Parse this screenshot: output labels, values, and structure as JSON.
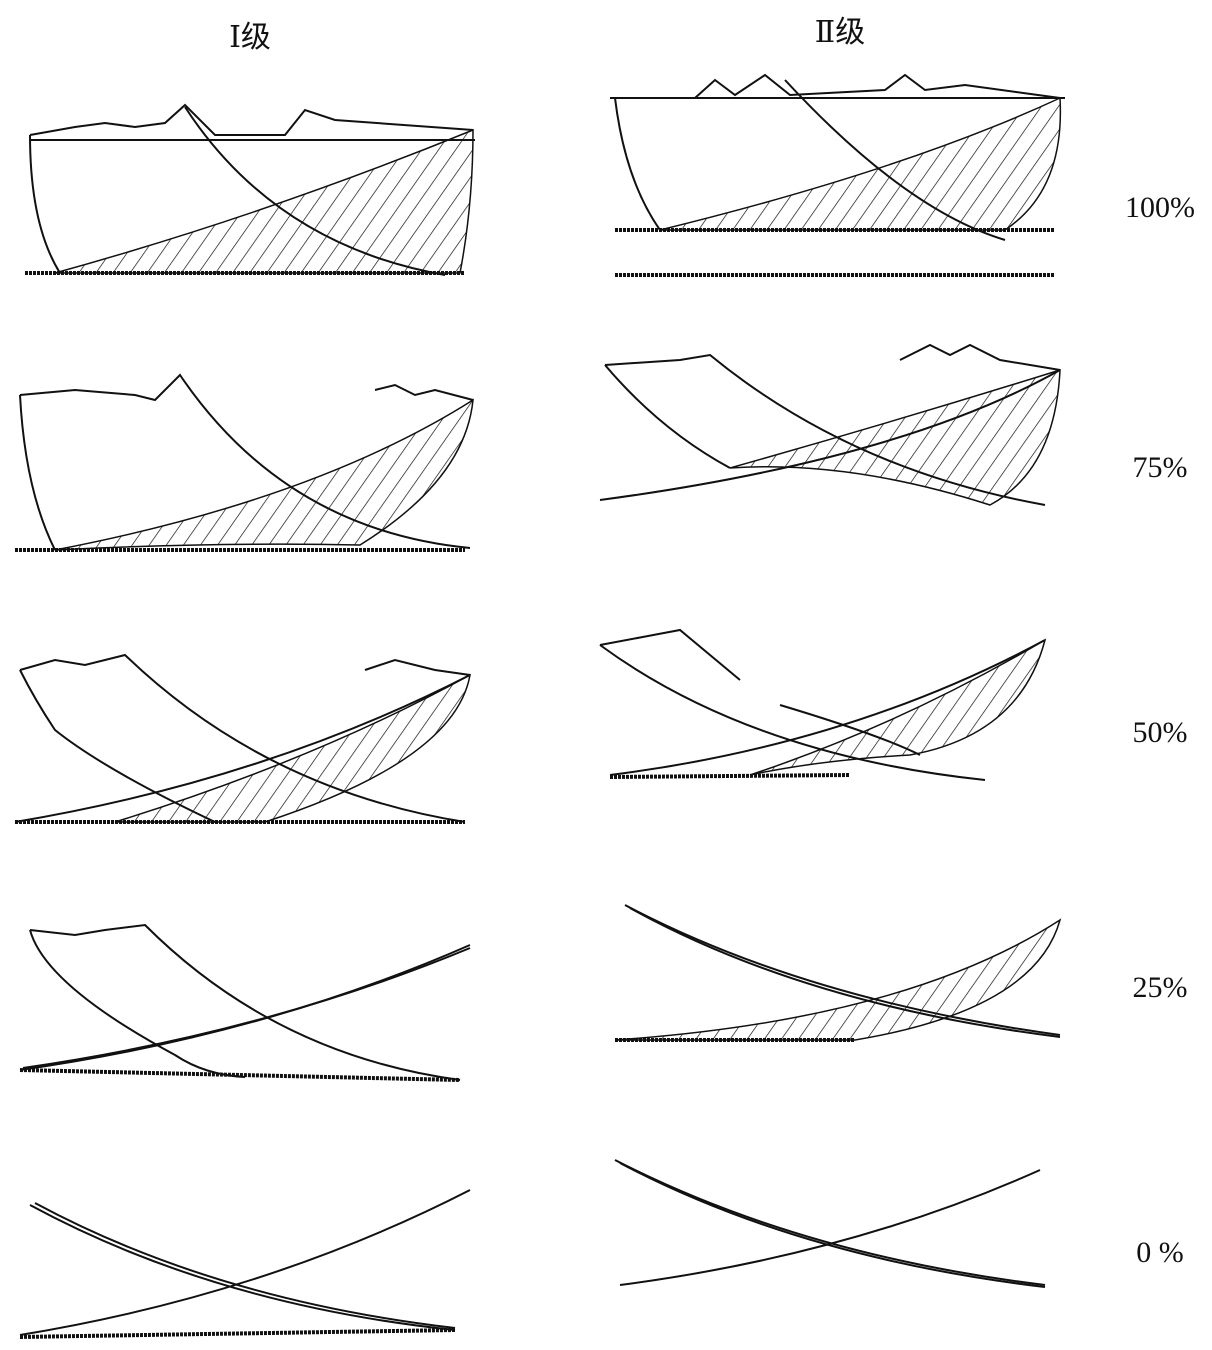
{
  "columns": [
    "Ⅰ级",
    "Ⅱ级"
  ],
  "rows": [
    "100%",
    "75%",
    "50%",
    "25%",
    "0 %"
  ]
}
